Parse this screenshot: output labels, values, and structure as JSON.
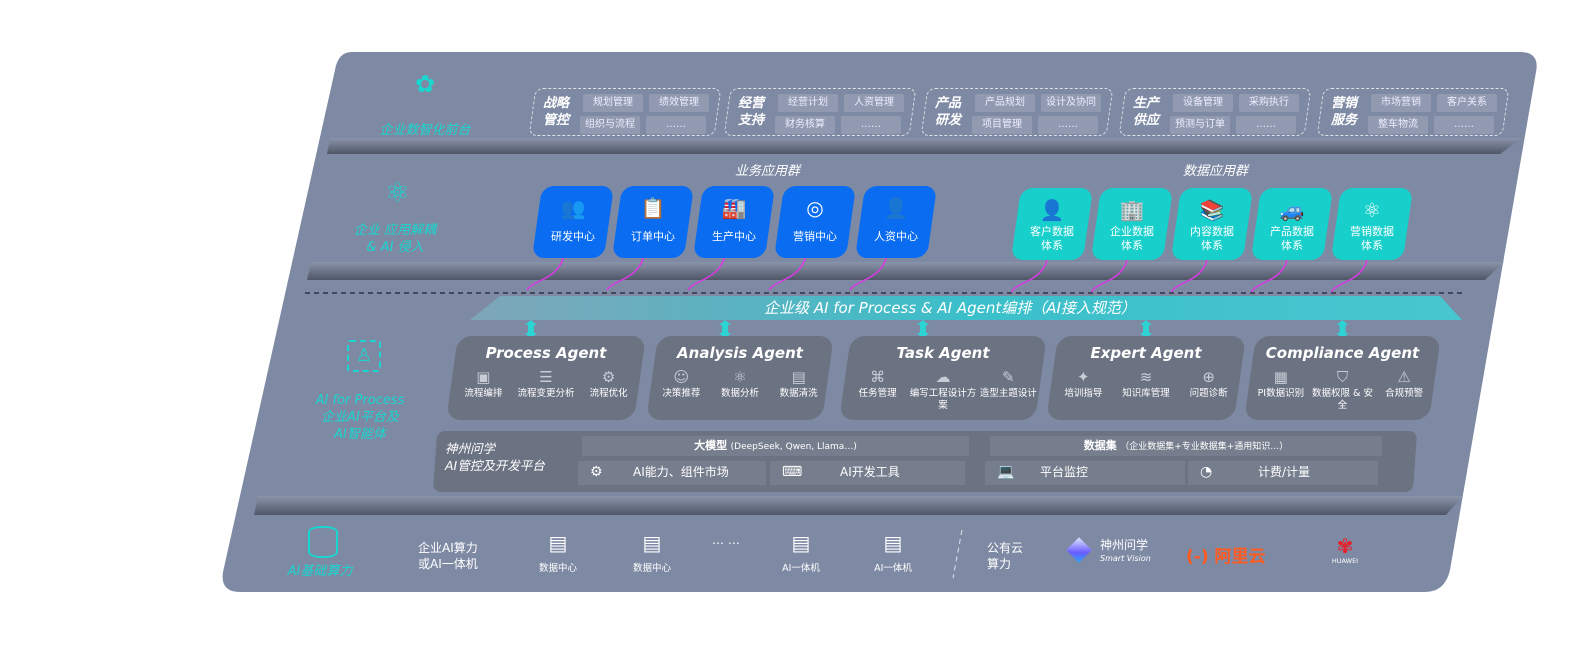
{
  "colors": {
    "panel": "#7e8aa4",
    "accent_cyan": "#19d6cf",
    "business_blue": "#0a6cf0",
    "data_teal": "#17cfcb",
    "arrow_magenta": "#d63de0",
    "agent_card": "#6b7282"
  },
  "layers": {
    "frontend": {
      "label": "企业数智化前台",
      "icon": "brain-icon"
    },
    "apps": {
      "label_line1": "企业 应用解耦",
      "label_line2": "& AI 侵入",
      "icon": "molecule-icon"
    },
    "ai_process": {
      "label_line1": "AI for Process",
      "label_line2": "企业AI平台及",
      "label_line3": "AI智能体",
      "icon": "face-scan-icon"
    },
    "compute": {
      "label": "AI基础算力",
      "icon": "database-icon"
    }
  },
  "frontend_groups": [
    {
      "title": "战略管控",
      "items": [
        "规划管理",
        "绩效管理",
        "组织与流程",
        "……"
      ]
    },
    {
      "title": "经营支持",
      "items": [
        "经营计划",
        "人资管理",
        "财务核算",
        "……"
      ]
    },
    {
      "title": "产品研发",
      "items": [
        "产品规划",
        "设计及协同",
        "项目管理",
        "……"
      ]
    },
    {
      "title": "生产供应",
      "items": [
        "设备管理",
        "采购执行",
        "预测与订单",
        "……"
      ]
    },
    {
      "title": "营销服务",
      "items": [
        "市场营销",
        "客户关系",
        "整车物流",
        "……"
      ]
    }
  ],
  "business_apps": {
    "title": "业务应用群",
    "items": [
      {
        "label": "研发中心",
        "icon": "people-icon",
        "glyph": "👥"
      },
      {
        "label": "订单中心",
        "icon": "clipboard-icon",
        "glyph": "📋"
      },
      {
        "label": "生产中心",
        "icon": "factory-icon",
        "glyph": "🏭"
      },
      {
        "label": "营销中心",
        "icon": "target-icon",
        "glyph": "◎"
      },
      {
        "label": "人资中心",
        "icon": "person-icon",
        "glyph": "👤"
      }
    ]
  },
  "data_apps": {
    "title": "数据应用群",
    "items": [
      {
        "label": "客户数据体系",
        "icon": "user-icon",
        "glyph": "👤"
      },
      {
        "label": "企业数据体系",
        "icon": "building-icon",
        "glyph": "🏢"
      },
      {
        "label": "内容数据体系",
        "icon": "books-icon",
        "glyph": "📚"
      },
      {
        "label": "产品数据体系",
        "icon": "car-icon",
        "glyph": "🚙"
      },
      {
        "label": "营销数据体系",
        "icon": "atom-icon",
        "glyph": "⚛"
      }
    ]
  },
  "orchestration_banner": "企业级 AI for Process & AI Agent编排（AI接入规范）",
  "agents": [
    {
      "title": "Process Agent",
      "features": [
        {
          "label": "流程编排",
          "icon": "chart-icon",
          "glyph": "▣"
        },
        {
          "label": "流程变更分析",
          "icon": "list-icon",
          "glyph": "☰"
        },
        {
          "label": "流程优化",
          "icon": "optimize-icon",
          "glyph": "⚙"
        }
      ]
    },
    {
      "title": "Analysis Agent",
      "features": [
        {
          "label": "决策推荐",
          "icon": "head-icon",
          "glyph": "☺"
        },
        {
          "label": "数据分析",
          "icon": "atom-icon",
          "glyph": "⚛"
        },
        {
          "label": "数据清洗",
          "icon": "clean-icon",
          "glyph": "▤"
        }
      ]
    },
    {
      "title": "Task Agent",
      "features": [
        {
          "label": "任务管理",
          "icon": "network-icon",
          "glyph": "⌘"
        },
        {
          "label": "编写工程设计方案",
          "icon": "cloud-icon",
          "glyph": "☁"
        },
        {
          "label": "造型主题设计",
          "icon": "design-icon",
          "glyph": "✎"
        }
      ]
    },
    {
      "title": "Expert Agent",
      "features": [
        {
          "label": "培训指导",
          "icon": "training-icon",
          "glyph": "✦"
        },
        {
          "label": "知识库管理",
          "icon": "layers-icon",
          "glyph": "≋"
        },
        {
          "label": "问题诊断",
          "icon": "diagnose-icon",
          "glyph": "⊕"
        }
      ]
    },
    {
      "title": "Compliance Agent",
      "features": [
        {
          "label": "PI数据识别",
          "icon": "id-icon",
          "glyph": "▦"
        },
        {
          "label": "数据权限 & 安全",
          "icon": "shield-icon",
          "glyph": "⛉"
        },
        {
          "label": "合规预警",
          "icon": "alert-icon",
          "glyph": "⚠"
        }
      ]
    }
  ],
  "platform": {
    "name_line1": "神州问学",
    "name_line2": "AI管控及开发平台",
    "models_title": "大模型",
    "models_note": "(DeepSeek, Qwen, Llama…)",
    "datasets_title": "数据集",
    "datasets_note": "（企业数据集+专业数据集+通用知识…）",
    "cells": [
      {
        "label": "AI能力、组件市场",
        "icon": "market-icon",
        "glyph": "⚙"
      },
      {
        "label": "AI开发工具",
        "icon": "dev-tool-icon",
        "glyph": "⌨"
      },
      {
        "label": "平台监控",
        "icon": "monitor-icon",
        "glyph": "💻"
      },
      {
        "label": "计费/计量",
        "icon": "gauge-icon",
        "glyph": "◔"
      }
    ]
  },
  "compute": {
    "enterprise_line1": "企业AI算力",
    "enterprise_line2": "或AI一体机",
    "items": [
      "数据中心",
      "数据中心",
      "AI一体机",
      "AI一体机"
    ],
    "ellipsis": "… …",
    "public_line1": "公有云",
    "public_line2": "算力",
    "providers": [
      {
        "name": "神州问学",
        "sub": "Smart Vision"
      },
      {
        "name": "阿里云",
        "mark": "(-)"
      },
      {
        "name": "HUAWEI"
      }
    ]
  }
}
